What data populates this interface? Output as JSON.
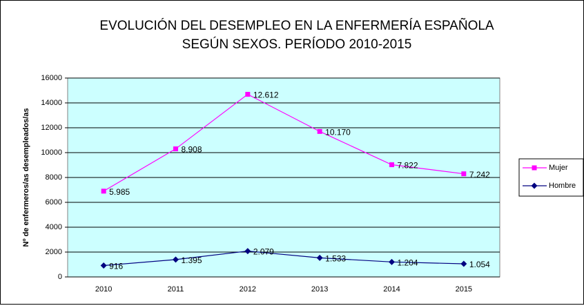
{
  "chart_data": {
    "type": "line",
    "stacked": true,
    "title": [
      "EVOLUCIÓN DEL DESEMPLEO EN LA ENFERMERÍA ESPAÑOLA",
      "SEGÚN SEXOS. PERÍODO 2010-2015"
    ],
    "y_label": "Nº de enfermeros/as desempleados/as",
    "categories": [
      "2010",
      "2011",
      "2012",
      "2013",
      "2014",
      "2015"
    ],
    "series": [
      {
        "name": "Hombre",
        "color": "#000080",
        "marker": "diamond",
        "values": [
          916,
          1395,
          2079,
          1533,
          1204,
          1054
        ],
        "value_labels": [
          "916",
          "1.395",
          "2.079",
          "1.533",
          "1.204",
          "1.054"
        ]
      },
      {
        "name": "Mujer",
        "color": "#ff00ff",
        "marker": "square",
        "values": [
          5985,
          8908,
          12612,
          10170,
          7822,
          7242
        ],
        "value_labels": [
          "5.985",
          "8.908",
          "12.612",
          "10.170",
          "7.822",
          "7.242"
        ]
      }
    ],
    "ylim": [
      0,
      16000
    ],
    "yticks": [
      0,
      2000,
      4000,
      6000,
      8000,
      10000,
      12000,
      14000,
      16000
    ],
    "grid": true,
    "legend": "right",
    "plot_background": "#ccffff"
  }
}
